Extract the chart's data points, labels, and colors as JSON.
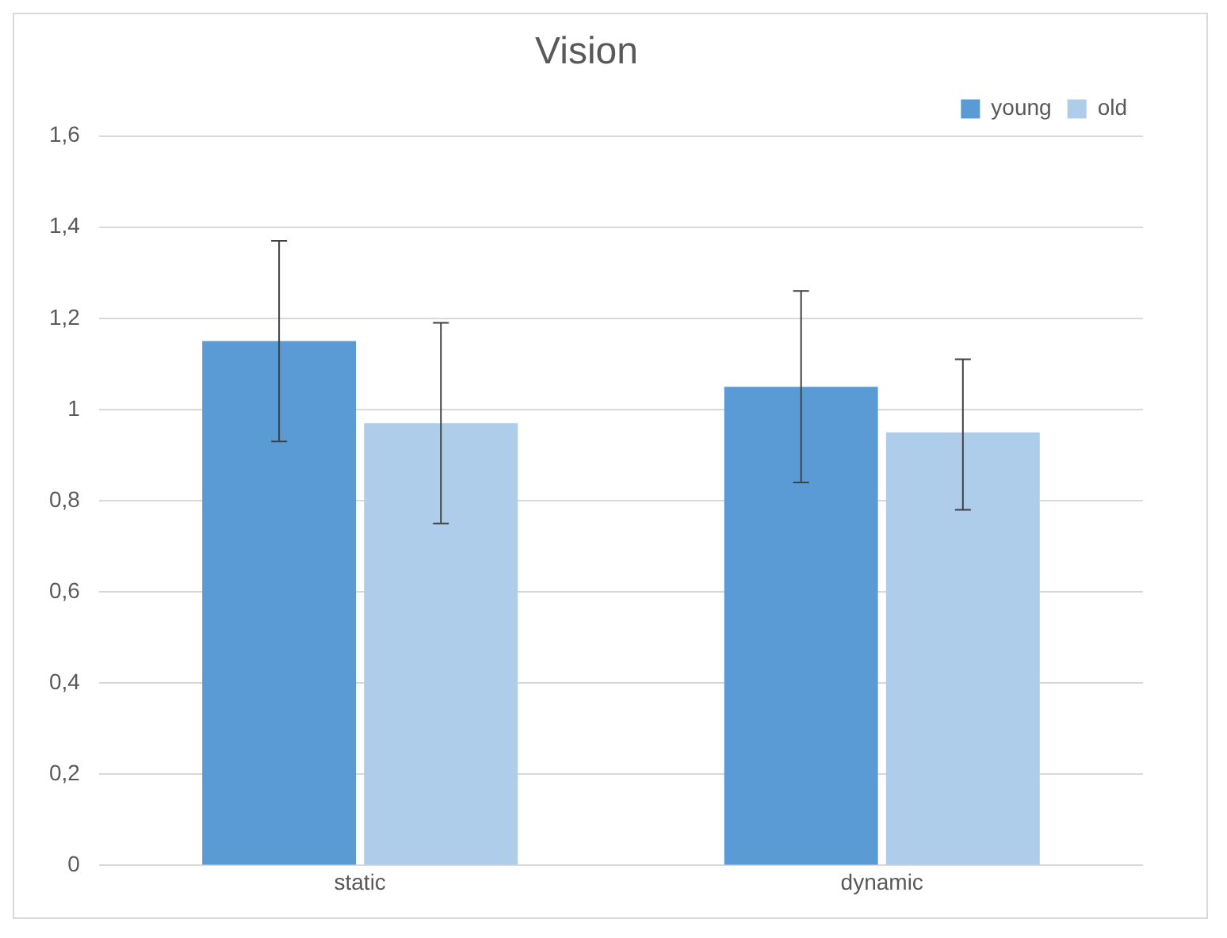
{
  "chart_data": {
    "type": "bar",
    "title": "Vision",
    "categories": [
      "static",
      "dynamic"
    ],
    "series": [
      {
        "name": "young",
        "color": "#5b9bd5",
        "values": [
          1.15,
          1.05
        ],
        "errors": [
          [
            0.93,
            1.37
          ],
          [
            0.84,
            1.26
          ]
        ]
      },
      {
        "name": "old",
        "color": "#adcdea",
        "values": [
          0.97,
          0.95
        ],
        "errors": [
          [
            0.75,
            1.19
          ],
          [
            0.78,
            1.11
          ]
        ]
      }
    ],
    "ylim": [
      0,
      1.6
    ],
    "yticks": [
      {
        "value": 0,
        "label": "0"
      },
      {
        "value": 0.2,
        "label": "0,2"
      },
      {
        "value": 0.4,
        "label": "0,4"
      },
      {
        "value": 0.6,
        "label": "0,6"
      },
      {
        "value": 0.8,
        "label": "0,8"
      },
      {
        "value": 1,
        "label": "1"
      },
      {
        "value": 1.2,
        "label": "1,2"
      },
      {
        "value": 1.4,
        "label": "1,4"
      },
      {
        "value": 1.6,
        "label": "1,6"
      }
    ],
    "grid": "y",
    "legend": "top right"
  }
}
